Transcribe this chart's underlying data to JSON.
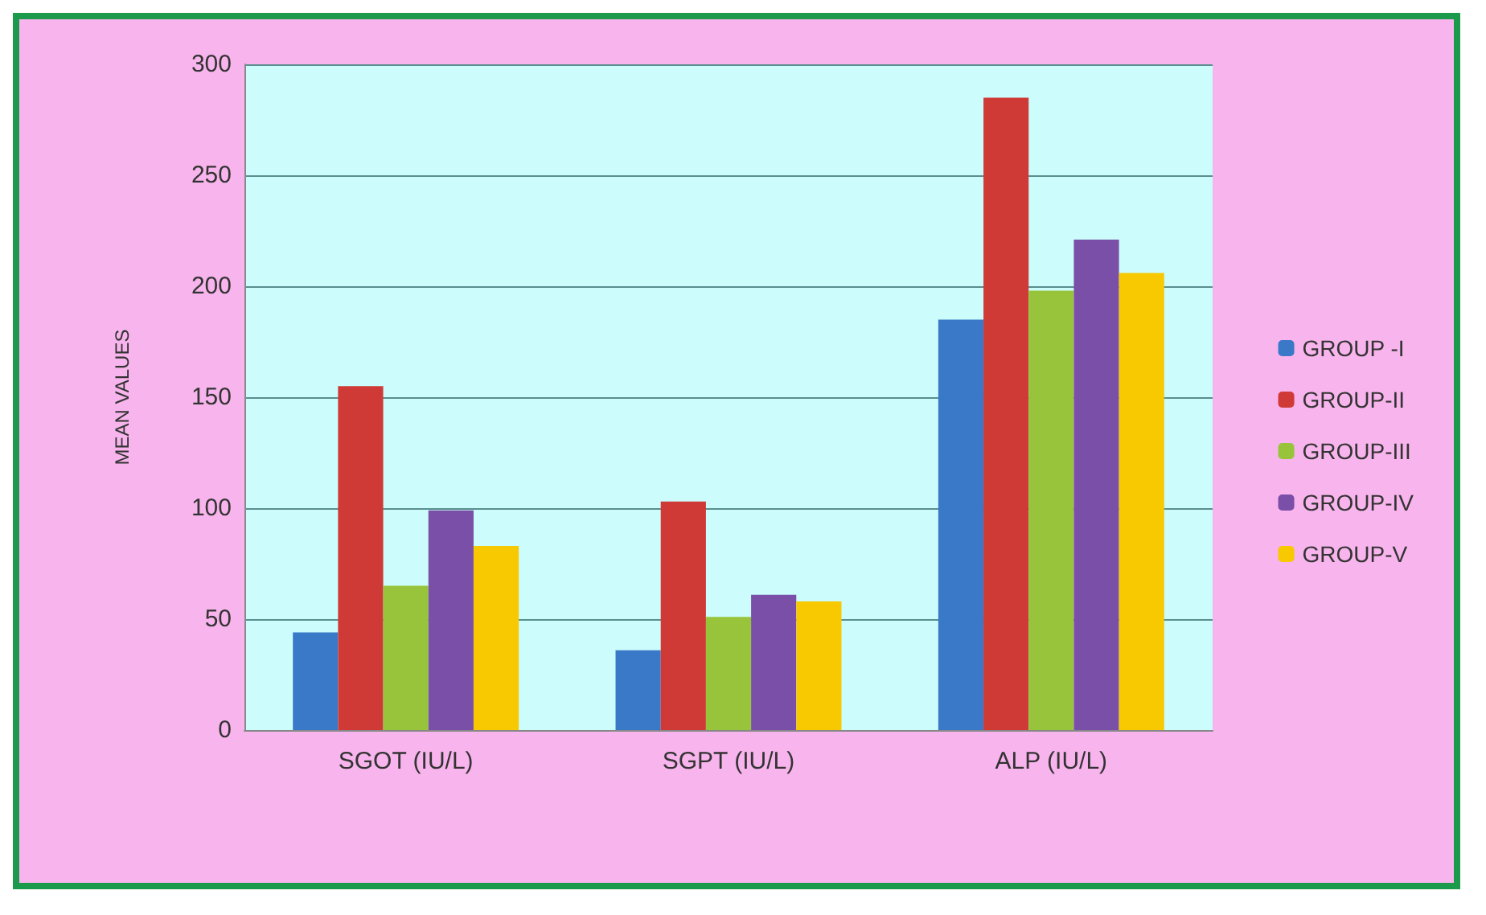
{
  "chart_data": {
    "type": "bar",
    "ylabel": "MEAN VALUES",
    "categories": [
      "SGOT (IU/L)",
      "SGPT (IU/L)",
      "ALP (IU/L)"
    ],
    "series": [
      {
        "name": "GROUP -I",
        "color": "#3a78c8",
        "values": [
          44,
          36,
          185
        ]
      },
      {
        "name": "GROUP-II",
        "color": "#d03a36",
        "values": [
          155,
          103,
          285
        ]
      },
      {
        "name": "GROUP-III",
        "color": "#98c43c",
        "values": [
          65,
          51,
          198
        ]
      },
      {
        "name": "GROUP-IV",
        "color": "#7a4fa8",
        "values": [
          99,
          61,
          221
        ]
      },
      {
        "name": "GROUP-V",
        "color": "#f8c800",
        "values": [
          83,
          58,
          206
        ]
      }
    ],
    "ylim": [
      0,
      300
    ],
    "yticks": [
      0,
      50,
      100,
      150,
      200,
      250,
      300
    ],
    "grid": "y",
    "legend": "right"
  }
}
